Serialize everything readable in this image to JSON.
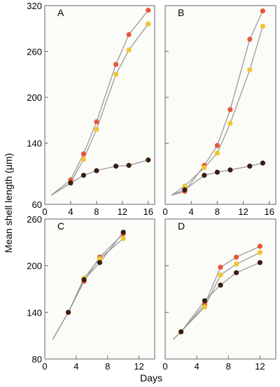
{
  "colors": {
    "background": "#ffffff",
    "plot_bg": "#fbfbf8",
    "frame": "#666666",
    "line": "#9a9a9a",
    "series_orange": "#e8563a",
    "series_yellow": "#f2c42f",
    "series_brown": "#3a1e12"
  },
  "figure": {
    "ylabel": "Mean shell length (μm)",
    "xlabel": "Days"
  },
  "chart_data": [
    {
      "type": "line",
      "panel": "A",
      "xlim": [
        0,
        17
      ],
      "ylim": [
        60,
        320
      ],
      "xticks": [
        0,
        4,
        8,
        12,
        16
      ],
      "yticks": [
        60,
        140,
        200,
        260,
        320
      ],
      "start": [
        1,
        72
      ],
      "series": [
        {
          "color": "orange",
          "x": [
            4,
            6,
            8,
            11,
            13,
            16
          ],
          "y": [
            92,
            126,
            168,
            243,
            282,
            314
          ]
        },
        {
          "color": "yellow",
          "x": [
            4,
            6,
            8,
            11,
            13,
            16
          ],
          "y": [
            88,
            119,
            158,
            230,
            262,
            296
          ]
        },
        {
          "color": "brown",
          "x": [
            4,
            6,
            8,
            11,
            13,
            16
          ],
          "y": [
            88,
            98,
            104,
            110,
            111,
            118
          ]
        }
      ]
    },
    {
      "type": "line",
      "panel": "B",
      "xlim": [
        0,
        17
      ],
      "ylim": [
        60,
        320
      ],
      "xticks": [
        0,
        4,
        8,
        12,
        16
      ],
      "yticks": [
        60,
        140,
        200,
        260,
        320
      ],
      "start": [
        1,
        72
      ],
      "series": [
        {
          "color": "orange",
          "x": [
            3,
            6,
            8,
            10,
            13,
            15
          ],
          "y": [
            77,
            111,
            137,
            184,
            276,
            313
          ]
        },
        {
          "color": "yellow",
          "x": [
            3,
            6,
            8,
            10,
            13,
            15
          ],
          "y": [
            84,
            108,
            127,
            166,
            236,
            293
          ]
        },
        {
          "color": "brown",
          "x": [
            3,
            6,
            8,
            10,
            13,
            15
          ],
          "y": [
            79,
            98,
            102,
            105,
            110,
            114
          ]
        }
      ]
    },
    {
      "type": "line",
      "panel": "C",
      "xlim": [
        0,
        14
      ],
      "ylim": [
        80,
        260
      ],
      "xticks": [
        0,
        4,
        8,
        12
      ],
      "yticks": [
        80,
        140,
        200,
        260
      ],
      "start": [
        1,
        105
      ],
      "series": [
        {
          "color": "orange",
          "x": [
            3,
            5,
            7,
            10
          ],
          "y": [
            140,
            180,
            211,
            241
          ]
        },
        {
          "color": "yellow",
          "x": [
            3,
            5,
            7,
            10
          ],
          "y": [
            140,
            184,
            209,
            235
          ]
        },
        {
          "color": "brown",
          "x": [
            3,
            5,
            7,
            10
          ],
          "y": [
            140,
            182,
            204,
            243
          ]
        }
      ]
    },
    {
      "type": "line",
      "panel": "D",
      "xlim": [
        0,
        14
      ],
      "ylim": [
        80,
        260
      ],
      "xticks": [
        0,
        4,
        8,
        12
      ],
      "yticks": [
        80,
        140,
        200,
        260
      ],
      "start": [
        1,
        105
      ],
      "series": [
        {
          "color": "orange",
          "x": [
            2,
            5,
            7,
            9,
            12
          ],
          "y": [
            115,
            150,
            198,
            211,
            225
          ]
        },
        {
          "color": "yellow",
          "x": [
            2,
            5,
            7,
            9,
            12
          ],
          "y": [
            115,
            147,
            188,
            202,
            217
          ]
        },
        {
          "color": "brown",
          "x": [
            2,
            5,
            7,
            9,
            12
          ],
          "y": [
            115,
            155,
            175,
            191,
            204
          ]
        }
      ]
    }
  ]
}
